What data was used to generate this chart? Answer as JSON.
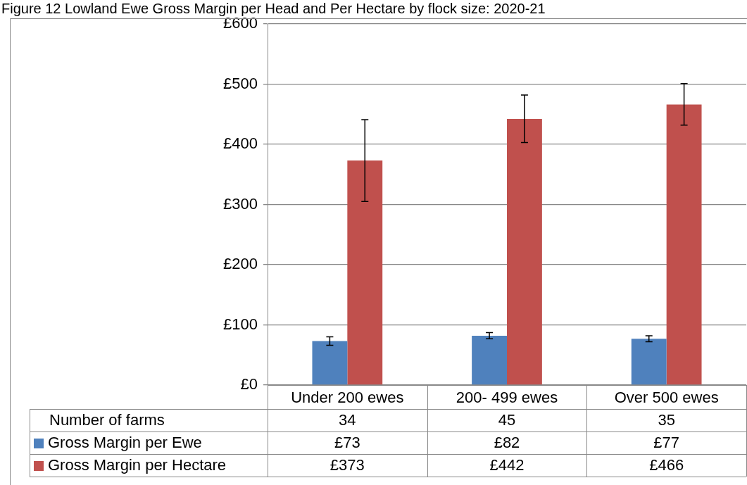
{
  "chart_data": {
    "type": "bar",
    "title": "Figure 12 Lowland Ewe Gross Margin per Head and Per Hectare by flock size: 2020-21",
    "categories": [
      "Under 200 ewes",
      "200- 499 ewes",
      "Over 500 ewes"
    ],
    "series": [
      {
        "name": "Gross Margin per Ewe",
        "color": "#4f81bd",
        "values": [
          73,
          82,
          77
        ],
        "value_labels": [
          "£73",
          "£82",
          "£77"
        ],
        "errors": [
          [
            66,
            80
          ],
          [
            77,
            87
          ],
          [
            72,
            82
          ]
        ]
      },
      {
        "name": "Gross Margin per Hectare",
        "color": "#c0504d",
        "values": [
          373,
          442,
          466
        ],
        "value_labels": [
          "£373",
          "£442",
          "£466"
        ],
        "errors": [
          [
            305,
            441
          ],
          [
            403,
            482
          ],
          [
            432,
            501
          ]
        ]
      }
    ],
    "annotations": [
      "Number of farms",
      "34",
      "45",
      "35"
    ],
    "ylim": [
      0,
      600
    ],
    "yticks": [
      {
        "value": 0,
        "label": "£0"
      },
      {
        "value": 100,
        "label": "£100"
      },
      {
        "value": 200,
        "label": "£200"
      },
      {
        "value": 300,
        "label": "£300"
      },
      {
        "value": 400,
        "label": "£400"
      },
      {
        "value": 500,
        "label": "£500"
      },
      {
        "value": 600,
        "label": "£600"
      }
    ],
    "grid": "y",
    "legend": "bottom"
  }
}
